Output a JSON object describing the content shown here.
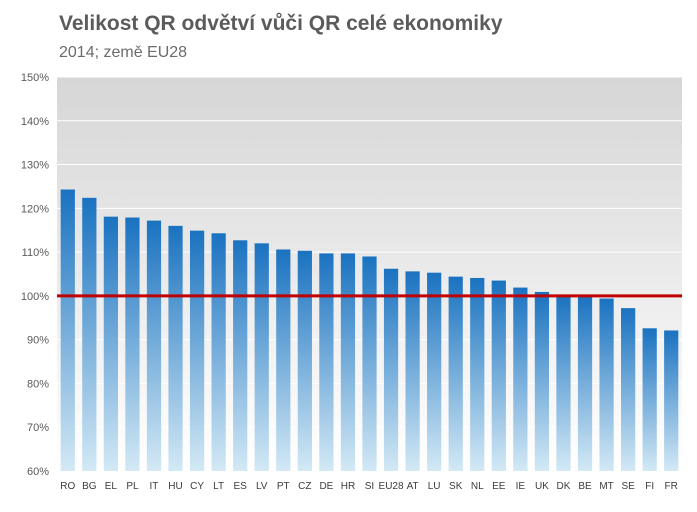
{
  "chart_data": {
    "type": "bar",
    "title": "Velikost QR odvětví vůči QR celé ekonomiky",
    "subtitle": "2014; země EU28",
    "categories": [
      "RO",
      "BG",
      "EL",
      "PL",
      "IT",
      "HU",
      "CY",
      "LT",
      "ES",
      "LV",
      "PT",
      "CZ",
      "DE",
      "HR",
      "SI",
      "EU28",
      "AT",
      "LU",
      "SK",
      "NL",
      "EE",
      "IE",
      "UK",
      "DK",
      "BE",
      "MT",
      "SE",
      "FI",
      "FR"
    ],
    "values": [
      124.3,
      122.4,
      118.1,
      117.9,
      117.2,
      116.0,
      114.9,
      114.3,
      112.7,
      112.0,
      110.6,
      110.3,
      109.7,
      109.7,
      109.0,
      106.2,
      105.6,
      105.3,
      104.4,
      104.1,
      103.5,
      101.9,
      100.9,
      100.0,
      100.0,
      99.4,
      97.2,
      92.6,
      92.1
    ],
    "yticks": [
      "60%",
      "70%",
      "80%",
      "90%",
      "100%",
      "110%",
      "120%",
      "130%",
      "140%",
      "150%"
    ],
    "ylim": [
      60,
      150
    ],
    "reference_line": 100,
    "grid": true,
    "colors": {
      "bar_top": "#1a72c0",
      "bar_bottom": "#d3e9f5",
      "reference_line": "#c00000",
      "plot_bg_top": "#d6d6d6",
      "plot_bg_bottom": "#ffffff",
      "grid": "#ffffff"
    }
  }
}
